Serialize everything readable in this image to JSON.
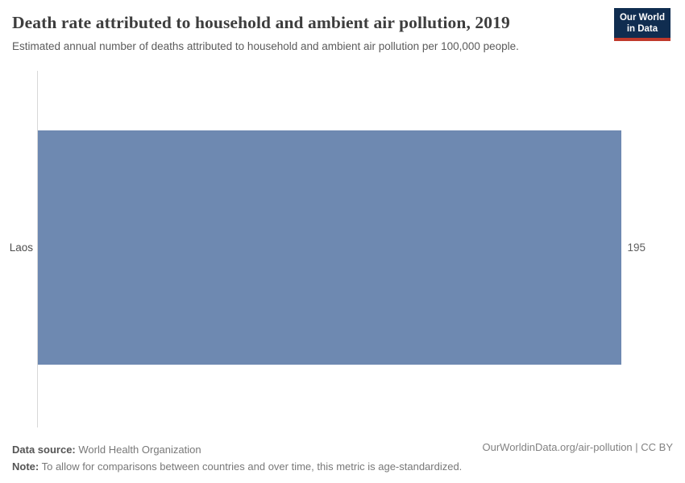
{
  "header": {
    "title": "Death rate attributed to household and ambient air pollution, 2019",
    "subtitle": "Estimated annual number of deaths attributed to household and ambient air pollution per 100,000 people.",
    "logo": {
      "line1": "Our World",
      "line2": "in Data"
    }
  },
  "chart_data": {
    "type": "bar",
    "orientation": "horizontal",
    "categories": [
      "Laos"
    ],
    "values": [
      195
    ],
    "value_labels": [
      "195"
    ],
    "title": "Death rate attributed to household and ambient air pollution, 2019",
    "subtitle": "Estimated annual number of deaths attributed to household and ambient air pollution per 100,000 people.",
    "xlabel": "",
    "ylabel": "",
    "xlim": [
      0,
      195
    ],
    "grid": false,
    "legend": false,
    "bar_color": "#6e89b1"
  },
  "footer": {
    "source_label": "Data source:",
    "source_value": "World Health Organization",
    "note_label": "Note:",
    "note_value": "To allow for comparisons between countries and over time, this metric is age-standardized.",
    "link": "OurWorldinData.org/air-pollution | CC BY"
  },
  "colors": {
    "bar": "#6e89b1",
    "axis": "#d7d7d7",
    "logo_background": "#102d50",
    "logo_accent": "#c0392b"
  }
}
